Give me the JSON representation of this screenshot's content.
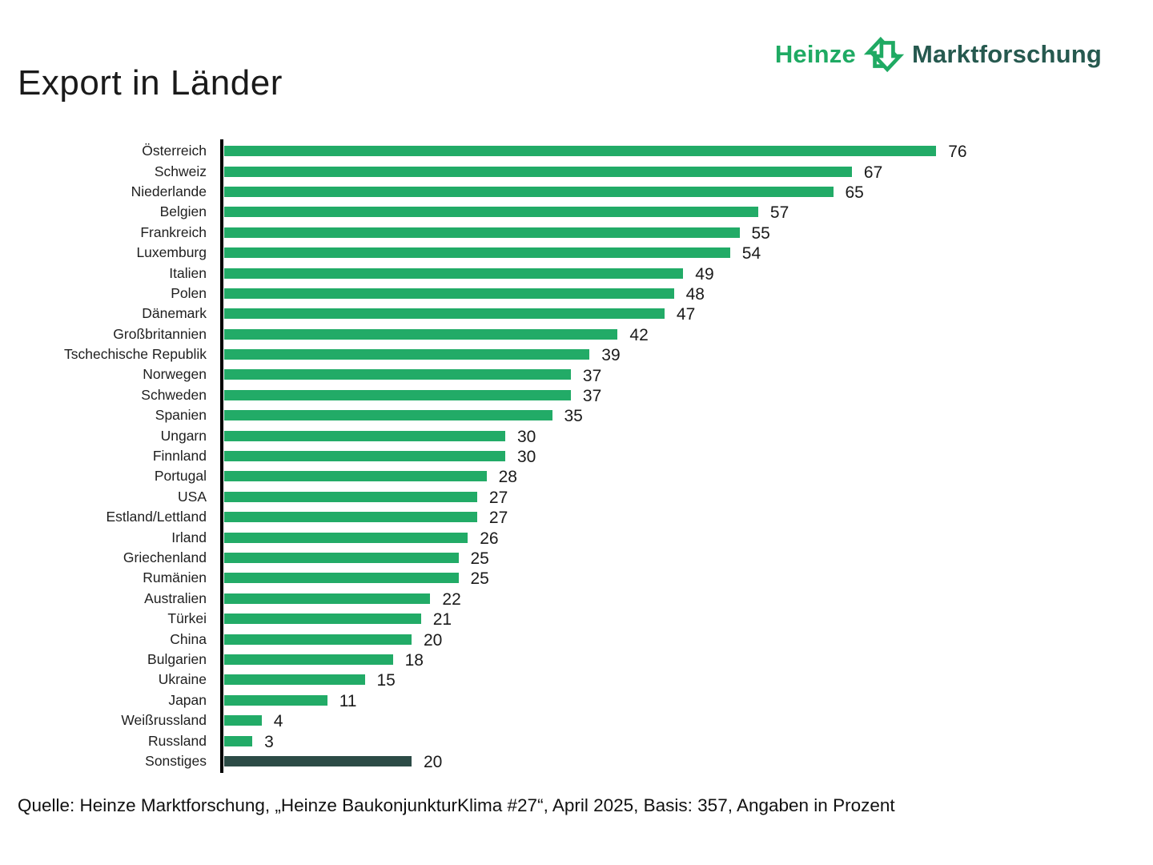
{
  "page": {
    "title": "Export in Länder"
  },
  "logo": {
    "brand": "Heinze",
    "suffix": "Marktforschung",
    "icon": "up-down-exchange-arrows-icon",
    "brand_color": "#1faa63",
    "suffix_color": "#26594f"
  },
  "footer": {
    "source": "Quelle: Heinze Marktforschung, „Heinze BaukonjunkturKlima #27“, April 2025, Basis: 357, Angaben in Prozent"
  },
  "chart_data": {
    "type": "bar",
    "orientation": "horizontal",
    "title": "Export in Länder",
    "xlabel": "",
    "ylabel": "",
    "unit": "Prozent",
    "xlim": [
      0,
      80
    ],
    "grid": false,
    "legend": false,
    "bar_color": "#22ab67",
    "highlight_color": "#2c4b46",
    "highlighted_category": "Sonstiges",
    "categories": [
      "Österreich",
      "Schweiz",
      "Niederlande",
      "Belgien",
      "Frankreich",
      "Luxemburg",
      "Italien",
      "Polen",
      "Dänemark",
      "Großbritannien",
      "Tschechische Republik",
      "Norwegen",
      "Schweden",
      "Spanien",
      "Ungarn",
      "Finnland",
      "Portugal",
      "USA",
      "Estland/Lettland",
      "Irland",
      "Griechenland",
      "Rumänien",
      "Australien",
      "Türkei",
      "China",
      "Bulgarien",
      "Ukraine",
      "Japan",
      "Weißrussland",
      "Russland",
      "Sonstiges"
    ],
    "values": [
      76,
      67,
      65,
      57,
      55,
      54,
      49,
      48,
      47,
      42,
      39,
      37,
      37,
      35,
      30,
      30,
      28,
      27,
      27,
      26,
      25,
      25,
      22,
      21,
      20,
      18,
      15,
      11,
      4,
      3,
      20
    ]
  }
}
